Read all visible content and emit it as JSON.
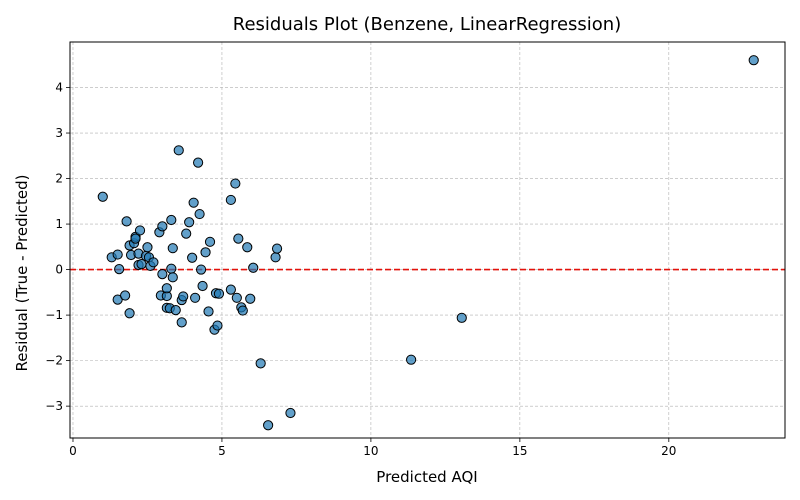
{
  "chart_data": {
    "type": "scatter",
    "title": "Residuals Plot (Benzene, LinearRegression)",
    "xlabel": "Predicted AQI",
    "ylabel": "Residual (True - Predicted)",
    "xlim": [
      -0.1,
      23.9
    ],
    "ylim": [
      -3.7,
      5.0
    ],
    "xticks": [
      0,
      5,
      10,
      15,
      20
    ],
    "yticks": [
      -3,
      -2,
      -1,
      0,
      1,
      2,
      3,
      4
    ],
    "grid": true,
    "reference_line": {
      "y": 0,
      "color": "#e3120b",
      "style": "dashed"
    },
    "marker_color": "#1f77b4",
    "points": [
      [
        1.0,
        1.6
      ],
      [
        1.3,
        0.27
      ],
      [
        1.5,
        0.33
      ],
      [
        1.55,
        0.01
      ],
      [
        1.5,
        -0.66
      ],
      [
        1.75,
        -0.57
      ],
      [
        1.8,
        1.06
      ],
      [
        1.9,
        0.53
      ],
      [
        1.95,
        0.32
      ],
      [
        1.9,
        -0.96
      ],
      [
        2.05,
        0.58
      ],
      [
        2.1,
        0.72
      ],
      [
        2.1,
        0.68
      ],
      [
        2.2,
        0.35
      ],
      [
        2.2,
        0.1
      ],
      [
        2.25,
        0.86
      ],
      [
        2.3,
        0.12
      ],
      [
        2.45,
        0.3
      ],
      [
        2.5,
        0.49
      ],
      [
        2.55,
        0.27
      ],
      [
        2.6,
        0.08
      ],
      [
        2.7,
        0.16
      ],
      [
        2.9,
        0.82
      ],
      [
        2.95,
        -0.57
      ],
      [
        3.0,
        0.95
      ],
      [
        3.0,
        -0.1
      ],
      [
        3.15,
        -0.58
      ],
      [
        3.15,
        -0.41
      ],
      [
        3.15,
        -0.84
      ],
      [
        3.25,
        -0.85
      ],
      [
        3.3,
        1.09
      ],
      [
        3.3,
        0.02
      ],
      [
        3.35,
        -0.17
      ],
      [
        3.35,
        0.47
      ],
      [
        3.45,
        -0.89
      ],
      [
        3.55,
        2.62
      ],
      [
        3.65,
        -1.16
      ],
      [
        3.65,
        -0.67
      ],
      [
        3.7,
        -0.59
      ],
      [
        3.8,
        0.79
      ],
      [
        3.9,
        1.04
      ],
      [
        4.0,
        0.26
      ],
      [
        4.05,
        1.47
      ],
      [
        4.1,
        -0.62
      ],
      [
        4.2,
        2.35
      ],
      [
        4.25,
        1.22
      ],
      [
        4.3,
        0.0
      ],
      [
        4.35,
        -0.36
      ],
      [
        4.45,
        0.38
      ],
      [
        4.55,
        -0.92
      ],
      [
        4.6,
        0.61
      ],
      [
        4.75,
        -1.32
      ],
      [
        4.8,
        -0.52
      ],
      [
        4.85,
        -1.23
      ],
      [
        4.9,
        -0.53
      ],
      [
        5.3,
        1.53
      ],
      [
        5.3,
        -0.44
      ],
      [
        5.45,
        1.89
      ],
      [
        5.5,
        -0.62
      ],
      [
        5.55,
        0.68
      ],
      [
        5.65,
        -0.83
      ],
      [
        5.7,
        -0.9
      ],
      [
        5.85,
        0.49
      ],
      [
        5.95,
        -0.64
      ],
      [
        6.05,
        0.04
      ],
      [
        6.3,
        -2.06
      ],
      [
        6.55,
        -3.42
      ],
      [
        6.8,
        0.27
      ],
      [
        6.85,
        0.46
      ],
      [
        7.3,
        -3.15
      ],
      [
        11.35,
        -1.98
      ],
      [
        13.05,
        -1.06
      ],
      [
        22.85,
        4.6
      ]
    ]
  }
}
